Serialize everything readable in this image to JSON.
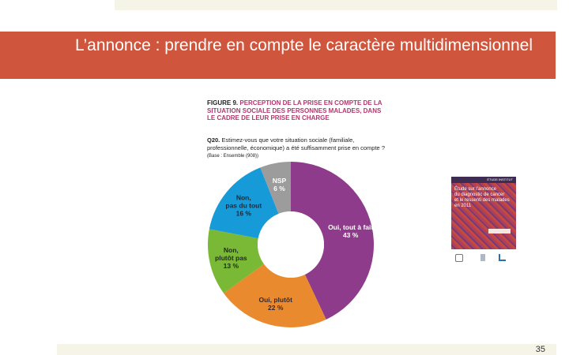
{
  "slide": {
    "title": "L’annonce : prendre en compte le caractère multidimensionnel",
    "page_number": "35"
  },
  "figure": {
    "number": "FIGURE 9.",
    "title": "PERCEPTION DE LA PRISE EN COMPTE DE LA SITUATION SOCIALE DES PERSONNES MALADES, DANS LE CADRE DE LEUR PRISE EN CHARGE",
    "question_number": "Q20.",
    "question": "Estimez-vous que votre situation sociale (familiale, professionnelle, économique) a été suffisamment prise en compte ?",
    "base": "(Base : Ensemble (908))"
  },
  "chart_data": {
    "type": "pie",
    "donut": true,
    "categories": [
      "Oui, tout à fait",
      "Oui, plutôt",
      "Non, plutôt pas",
      "Non, pas du tout",
      "NSP"
    ],
    "labels": [
      [
        "Oui, tout à fait",
        "43 %"
      ],
      [
        "Oui, plutôt",
        "22 %"
      ],
      [
        "Non,",
        "plutôt pas",
        "13 %"
      ],
      [
        "Non,",
        "pas du tout",
        "16 %"
      ],
      [
        "NSP",
        "6 %"
      ]
    ],
    "values": [
      43,
      22,
      13,
      16,
      6
    ],
    "unit": "%",
    "colors": [
      "#8e3b8b",
      "#ea8a2e",
      "#7ab935",
      "#169ad8",
      "#9c9c9c"
    ],
    "label_colors": [
      "#ffffff",
      "#3a2a2a",
      "#1e2a1e",
      "#1a2a3a",
      "#ffffff"
    ]
  },
  "report_cover": {
    "header": "ÉTUDE INSTITUT",
    "title_lines": [
      "Étude sur l’annonce",
      "du diagnostic de cancer",
      "et le ressenti des malades"
    ],
    "date": "en 2011"
  }
}
